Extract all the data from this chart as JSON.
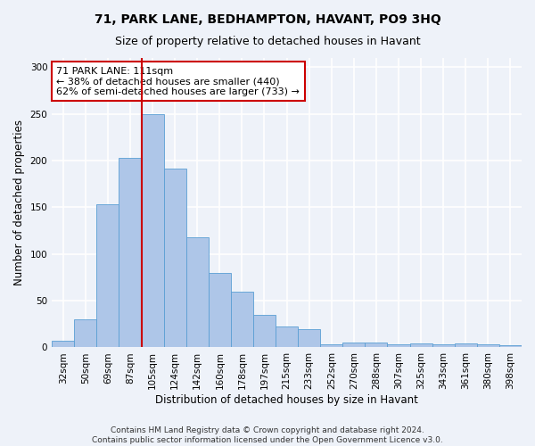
{
  "title": "71, PARK LANE, BEDHAMPTON, HAVANT, PO9 3HQ",
  "subtitle": "Size of property relative to detached houses in Havant",
  "xlabel": "Distribution of detached houses by size in Havant",
  "ylabel": "Number of detached properties",
  "bar_labels": [
    "32sqm",
    "50sqm",
    "69sqm",
    "87sqm",
    "105sqm",
    "124sqm",
    "142sqm",
    "160sqm",
    "178sqm",
    "197sqm",
    "215sqm",
    "233sqm",
    "252sqm",
    "270sqm",
    "288sqm",
    "307sqm",
    "325sqm",
    "343sqm",
    "361sqm",
    "380sqm",
    "398sqm"
  ],
  "bar_values": [
    7,
    30,
    153,
    203,
    250,
    192,
    118,
    80,
    60,
    35,
    22,
    20,
    3,
    5,
    5,
    3,
    4,
    3,
    4,
    3,
    2
  ],
  "bar_color": "#aec6e8",
  "bar_edgecolor": "#5a9fd4",
  "vline_x": 4.0,
  "vline_color": "#cc0000",
  "annotation_text": "71 PARK LANE: 111sqm\n← 38% of detached houses are smaller (440)\n62% of semi-detached houses are larger (733) →",
  "annotation_box_color": "#ffffff",
  "annotation_box_edgecolor": "#cc0000",
  "ylim": [
    0,
    310
  ],
  "yticks": [
    0,
    50,
    100,
    150,
    200,
    250,
    300
  ],
  "footer_text": "Contains HM Land Registry data © Crown copyright and database right 2024.\nContains public sector information licensed under the Open Government Licence v3.0.",
  "bg_color": "#eef2f9",
  "grid_color": "#ffffff",
  "title_fontsize": 10,
  "subtitle_fontsize": 9,
  "axis_label_fontsize": 8.5,
  "tick_fontsize": 7.5,
  "annotation_fontsize": 8
}
